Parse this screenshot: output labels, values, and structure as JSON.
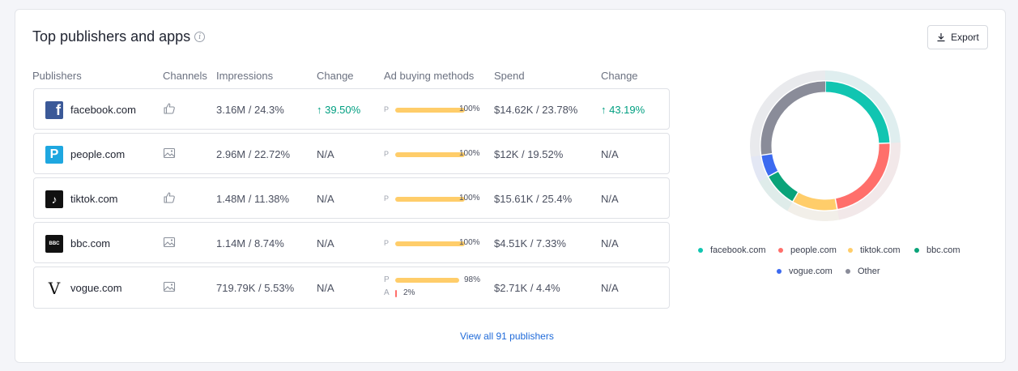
{
  "card": {
    "title": "Top publishers and apps",
    "info_icon": "info-icon",
    "export_label": "Export",
    "view_all_label": "View all 91 publishers"
  },
  "columns": [
    "Publishers",
    "Channels",
    "Impressions",
    "Change",
    "Ad buying methods",
    "Spend",
    "Change"
  ],
  "rows": [
    {
      "publisher": "facebook.com",
      "logo": "f",
      "logo_color": "#3b5998",
      "channel_icon": "thumbs-up-icon",
      "impressions": "3.16M / 24.3%",
      "change": "39.50%",
      "change_arrow": "↑",
      "bars": [
        {
          "label": "P",
          "fraction": 1.0,
          "pct": "100%"
        }
      ],
      "spend": "$14.62K / 23.78%",
      "spend_change": "43.19%",
      "spend_change_arrow": "↑"
    },
    {
      "publisher": "people.com",
      "logo": "P",
      "logo_color": "#1ea7e0",
      "channel_icon": "image-icon",
      "impressions": "2.96M / 22.72%",
      "change": "N/A",
      "bars": [
        {
          "label": "P",
          "fraction": 1.0,
          "pct": "100%"
        }
      ],
      "spend": "$12K / 19.52%",
      "spend_change": "N/A"
    },
    {
      "publisher": "tiktok.com",
      "logo": "♪",
      "logo_color": "#111111",
      "channel_icon": "thumbs-up-icon",
      "impressions": "1.48M / 11.38%",
      "change": "N/A",
      "bars": [
        {
          "label": "P",
          "fraction": 1.0,
          "pct": "100%"
        }
      ],
      "spend": "$15.61K / 25.4%",
      "spend_change": "N/A"
    },
    {
      "publisher": "bbc.com",
      "logo": "BBC",
      "logo_color": "#111111",
      "channel_icon": "image-icon",
      "impressions": "1.14M / 8.74%",
      "change": "N/A",
      "bars": [
        {
          "label": "P",
          "fraction": 1.0,
          "pct": "100%"
        }
      ],
      "spend": "$4.51K / 7.33%",
      "spend_change": "N/A"
    },
    {
      "publisher": "vogue.com",
      "logo": "V",
      "logo_color": "#ffffff",
      "channel_icon": "image-icon",
      "impressions": "719.79K / 5.53%",
      "change": "N/A",
      "bars": [
        {
          "label": "P",
          "fraction": 0.98,
          "pct": "98%"
        },
        {
          "label": "A",
          "fraction": 0.02,
          "pct": "2%"
        }
      ],
      "spend": "$2.71K / 4.4%",
      "spend_change": "N/A"
    }
  ],
  "chart_data": {
    "type": "pie",
    "categories": [
      "facebook.com",
      "people.com",
      "tiktok.com",
      "bbc.com",
      "vogue.com",
      "Other"
    ],
    "values": [
      24.3,
      22.72,
      11.38,
      8.74,
      5.53,
      27.33
    ],
    "colors": [
      "#11c5b1",
      "#ff6f6b",
      "#ffcd6a",
      "#0aa379",
      "#3c6af0",
      "#8a8c99"
    ],
    "legend_position": "bottom"
  }
}
